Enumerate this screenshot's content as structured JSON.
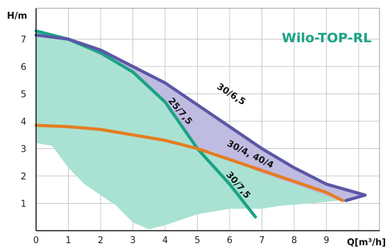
{
  "chart_data": {
    "type": "line",
    "title": "Wilo-TOP-RL",
    "xlabel": "Q[m³/h]",
    "ylabel": "H/m",
    "xlim": [
      0,
      10
    ],
    "ylim": [
      0,
      7.8
    ],
    "x_ticks": [
      0,
      1,
      2,
      3,
      4,
      5,
      6,
      7,
      8,
      9
    ],
    "y_ticks": [
      1,
      2,
      3,
      4,
      5,
      6,
      7
    ],
    "grid": true,
    "colors": {
      "purple": "#5b57a6",
      "purple_fill": "#c0bbe0",
      "green": "#1aa385",
      "green_fill": "#a9e2d2",
      "orange": "#e57c22",
      "brand": "#1aa385"
    },
    "areas": [
      {
        "color": "green_fill",
        "points": [
          [
            0,
            3.2
          ],
          [
            0.5,
            3.1
          ],
          [
            1,
            2.3
          ],
          [
            1.5,
            1.7
          ],
          [
            2,
            1.3
          ],
          [
            2.5,
            0.9
          ],
          [
            3,
            0.3
          ],
          [
            3.5,
            0.05
          ],
          [
            4,
            0.2
          ],
          [
            5,
            0.6
          ],
          [
            6,
            0.8
          ],
          [
            7,
            0.8
          ],
          [
            7.5,
            0.9
          ],
          [
            8.5,
            1.0
          ],
          [
            9.4,
            1.1
          ],
          [
            9,
            1.4
          ],
          [
            8,
            1.8
          ],
          [
            7,
            2.2
          ],
          [
            6,
            2.6
          ],
          [
            5.5,
            2.9
          ],
          [
            5,
            3.0
          ],
          [
            4,
            4.7
          ],
          [
            3,
            5.8
          ],
          [
            2,
            6.5
          ],
          [
            1,
            7.0
          ],
          [
            0,
            7.3
          ]
        ]
      },
      {
        "color": "purple_fill",
        "points": [
          [
            1,
            7.0
          ],
          [
            2,
            6.6
          ],
          [
            3,
            6.0
          ],
          [
            4,
            5.4
          ],
          [
            5,
            4.6
          ],
          [
            6,
            3.8
          ],
          [
            7,
            3.0
          ],
          [
            8,
            2.3
          ],
          [
            9,
            1.7
          ],
          [
            10.2,
            1.3
          ],
          [
            9.4,
            1.1
          ],
          [
            8,
            1.7
          ],
          [
            7,
            2.1
          ],
          [
            6,
            2.6
          ],
          [
            5.5,
            2.9
          ],
          [
            5,
            3.0
          ],
          [
            4,
            4.7
          ],
          [
            3,
            5.8
          ],
          [
            2,
            6.4
          ]
        ]
      }
    ],
    "series": [
      {
        "color": "green",
        "points": [
          [
            0,
            7.3
          ],
          [
            1,
            7.0
          ],
          [
            2,
            6.5
          ],
          [
            3,
            5.8
          ],
          [
            4,
            4.7
          ],
          [
            5,
            3.0
          ],
          [
            6,
            1.7
          ],
          [
            6.8,
            0.5
          ]
        ]
      },
      {
        "color": "purple",
        "points": [
          [
            0,
            7.15
          ],
          [
            1,
            7.0
          ],
          [
            2,
            6.6
          ],
          [
            3,
            6.0
          ],
          [
            4,
            5.4
          ],
          [
            5,
            4.6
          ],
          [
            6,
            3.8
          ],
          [
            7,
            3.0
          ],
          [
            8,
            2.3
          ],
          [
            9,
            1.7
          ],
          [
            10.2,
            1.3
          ],
          [
            9.6,
            1.1
          ]
        ]
      },
      {
        "color": "orange",
        "points": [
          [
            0,
            3.85
          ],
          [
            1,
            3.8
          ],
          [
            2,
            3.7
          ],
          [
            3,
            3.5
          ],
          [
            4,
            3.3
          ],
          [
            5,
            3.0
          ],
          [
            6,
            2.6
          ],
          [
            7,
            2.2
          ],
          [
            8,
            1.8
          ],
          [
            9,
            1.4
          ],
          [
            9.5,
            1.1
          ]
        ]
      }
    ],
    "curve_labels": [
      {
        "text": "30/6,5",
        "x": 6.0,
        "y": 4.9,
        "angle": 33
      },
      {
        "text": "25/7,5",
        "x": 4.4,
        "y": 4.3,
        "angle": 50
      },
      {
        "text": "30/4, 40/4",
        "x": 6.6,
        "y": 2.7,
        "angle": 27
      },
      {
        "text": "30/7,5",
        "x": 6.2,
        "y": 1.6,
        "angle": 50
      }
    ]
  }
}
